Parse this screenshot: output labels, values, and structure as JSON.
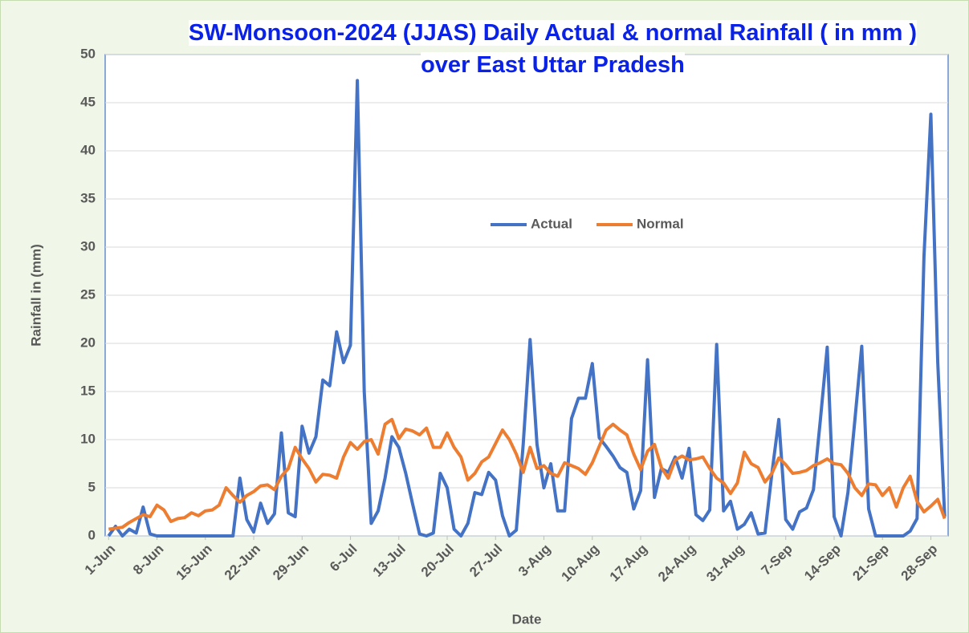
{
  "chart_data": {
    "type": "line",
    "title": "SW-Monsoon-2024 (JJAS) Daily Actual & normal Rainfall ( in mm ) over East Uttar Pradesh",
    "xlabel": "Date",
    "ylabel": "Rainfall in (mm)",
    "categories": [
      "1-Jun",
      null,
      null,
      null,
      null,
      null,
      null,
      "8-Jun",
      null,
      null,
      null,
      null,
      null,
      null,
      "15-Jun",
      null,
      null,
      null,
      null,
      null,
      null,
      "22-Jun",
      null,
      null,
      null,
      null,
      null,
      null,
      "29-Jun",
      null,
      null,
      null,
      null,
      null,
      null,
      "6-Jul",
      null,
      null,
      null,
      null,
      null,
      null,
      "13-Jul",
      null,
      null,
      null,
      null,
      null,
      null,
      "20-Jul",
      null,
      null,
      null,
      null,
      null,
      null,
      "27-Jul",
      null,
      null,
      null,
      null,
      null,
      null,
      "3-Aug",
      null,
      null,
      null,
      null,
      null,
      null,
      "10-Aug",
      null,
      null,
      null,
      null,
      null,
      null,
      "17-Aug",
      null,
      null,
      null,
      null,
      null,
      null,
      "24-Aug",
      null,
      null,
      null,
      null,
      null,
      null,
      "31-Aug",
      null,
      null,
      null,
      null,
      null,
      null,
      "7-Sep",
      null,
      null,
      null,
      null,
      null,
      null,
      "14-Sep",
      null,
      null,
      null,
      null,
      null,
      null,
      "21-Sep",
      null,
      null,
      null,
      null,
      null,
      null,
      "28-Sep",
      null,
      null
    ],
    "series": [
      {
        "name": "Actual",
        "color": "#4472c4",
        "values": [
          0,
          1.0,
          0,
          0.7,
          0.3,
          3.0,
          0.2,
          0,
          0,
          0,
          0,
          0,
          0,
          0,
          0,
          0,
          0,
          0,
          0,
          6.0,
          1.7,
          0.4,
          3.4,
          1.3,
          2.3,
          10.7,
          2.4,
          2.0,
          11.4,
          8.6,
          10.3,
          16.2,
          15.6,
          21.2,
          18.0,
          19.8,
          47.3,
          15,
          1.3,
          2.6,
          6.0,
          10.3,
          9.2,
          6.5,
          3.3,
          0.2,
          0,
          0.3,
          6.5,
          5.0,
          0.7,
          0,
          1.3,
          4.5,
          4.3,
          6.6,
          5.8,
          2.1,
          0,
          0.6,
          9.5,
          20.4,
          9.5,
          5.0,
          7.5,
          2.6,
          2.6,
          12.2,
          14.3,
          14.3,
          17.9,
          10.2,
          9.3,
          8.3,
          7.1,
          6.6,
          2.8,
          4.7,
          18.3,
          4.0,
          7.0,
          6.6,
          8.2,
          6.0,
          9.1,
          2.2,
          1.6,
          2.7,
          19.9,
          2.6,
          3.6,
          0.7,
          1.2,
          2.4,
          0.2,
          0.3,
          6.5,
          12.1,
          1.7,
          0.7,
          2.5,
          2.9,
          4.8,
          12,
          19.6,
          2.0,
          0,
          4.5,
          12,
          19.7,
          2.8,
          0,
          0,
          0,
          0,
          0,
          0.5,
          1.8,
          29,
          43.8,
          18,
          2
        ]
      },
      {
        "name": "Normal",
        "color": "#ed7d31",
        "values": [
          0.7,
          0.8,
          0.9,
          1.4,
          1.8,
          2.2,
          2.0,
          3.2,
          2.7,
          1.5,
          1.8,
          1.9,
          2.4,
          2.1,
          2.6,
          2.7,
          3.2,
          5.0,
          4.2,
          3.5,
          4.2,
          4.6,
          5.2,
          5.3,
          4.8,
          6.2,
          7.0,
          9.2,
          8.0,
          7.0,
          5.6,
          6.4,
          6.3,
          6.0,
          8.2,
          9.7,
          9.0,
          9.8,
          10.0,
          8.5,
          11.6,
          12.1,
          10.1,
          11.1,
          10.9,
          10.5,
          11.2,
          9.2,
          9.2,
          10.7,
          9.2,
          8.2,
          5.8,
          6.5,
          7.7,
          8.2,
          9.6,
          11.0,
          10.0,
          8.5,
          6.6,
          9.2,
          7.0,
          7.3,
          6.5,
          6.2,
          7.6,
          7.3,
          7.0,
          6.4,
          7.6,
          9.3,
          11.0,
          11.6,
          11.0,
          10.5,
          8.5,
          6.9,
          8.8,
          9.5,
          7.1,
          6.0,
          7.9,
          8.3,
          7.9,
          8.0,
          8.2,
          7.0,
          6.0,
          5.5,
          4.4,
          5.5,
          8.7,
          7.5,
          7.1,
          5.6,
          6.5,
          8.1,
          7.4,
          6.5,
          6.6,
          6.8,
          7.3,
          7.6,
          8.0,
          7.5,
          7.4,
          6.5,
          5.0,
          4.2,
          5.4,
          5.3,
          4.2,
          5.0,
          3.0,
          5.0,
          6.2,
          3.6,
          2.5,
          3.1,
          3.8,
          1.8
        ]
      }
    ],
    "ylim": [
      0,
      50
    ],
    "yticks": [
      0,
      5,
      10,
      15,
      20,
      25,
      30,
      35,
      40,
      45,
      50
    ],
    "grid": true,
    "legend": "center"
  }
}
